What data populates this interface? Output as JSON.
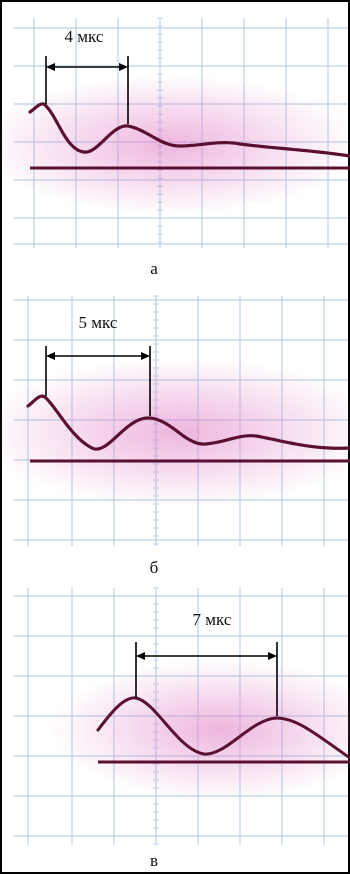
{
  "colors": {
    "grid": "#bcd0e6",
    "trace": "#5a1030",
    "glow": "#e07ac4",
    "baseline": "#5a1030",
    "annotation": "#000000",
    "border": "#000000"
  },
  "panels": [
    {
      "letter": "а",
      "interval_label": "4 мкс"
    },
    {
      "letter": "б",
      "interval_label": "5 мкс"
    },
    {
      "letter": "в",
      "interval_label": "7 мкс"
    }
  ]
}
